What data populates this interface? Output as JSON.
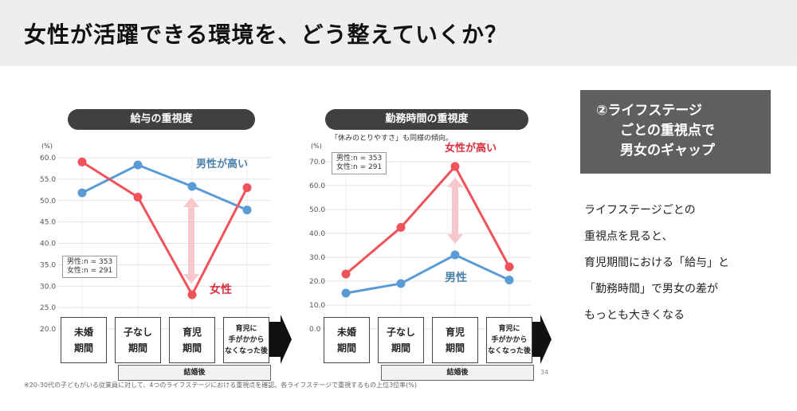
{
  "header": {
    "title": "女性が活躍できる環境を、どう整えていくか？"
  },
  "callout": {
    "lines": [
      "②ライフステージ",
      "ごとの重視点で",
      "男女のギャップ"
    ]
  },
  "description": {
    "lines": [
      "ライフステージごとの",
      "重視点を見ると、",
      "育児期間における「給与」と",
      "「勤務時間」で男女の差が",
      "もっとも大きくなる"
    ]
  },
  "slide": {
    "footnote": "※20-30代の子どもがいる従業員に対して、4つのライフステージにおける重視点を確認。各ライフステージで重視するもの上位3位率(%)",
    "page_number": "34",
    "after_marriage": "結婚後",
    "stages": [
      "未婚\n期間",
      "子なし\n期間",
      "育児\n期間",
      "育児に\n手がかから\nなくなった後"
    ],
    "legend_note": [
      "男性:n = 353",
      "女性:n = 291"
    ]
  },
  "colors": {
    "male": "#5b9bd5",
    "female": "#f0525a",
    "male_text": "#4a7fa8",
    "female_text": "#d93040",
    "arrow": "#f6c8cc"
  },
  "chart_data": [
    {
      "type": "line",
      "title": "給与の重視度",
      "unit": "(%)",
      "categories": [
        "未婚期間",
        "子なし期間",
        "育児期間",
        "育児に手がかからなくなった後"
      ],
      "ylim": [
        20,
        60
      ],
      "yticks": [
        "60.0",
        "55.0",
        "50.0",
        "45.0",
        "40.0",
        "35.0",
        "30.0",
        "25.0",
        "20.0"
      ],
      "series": [
        {
          "name": "男性",
          "values": [
            51.8,
            58.3,
            53.3,
            47.8
          ]
        },
        {
          "name": "女性",
          "values": [
            59.0,
            50.8,
            28.0,
            53.0
          ]
        }
      ],
      "annotations": {
        "high": "男性が高い",
        "low": "女性"
      }
    },
    {
      "type": "line",
      "title": "勤務時間の重視度",
      "subtitle": "「休みのとりやすさ」も同様の傾向。",
      "unit": "(%)",
      "categories": [
        "未婚期間",
        "子なし期間",
        "育児期間",
        "育児に手がかからなくなった後"
      ],
      "ylim": [
        0,
        70
      ],
      "yticks": [
        "70.0",
        "60.0",
        "50.0",
        "40.0",
        "30.0",
        "20.0",
        "10.0",
        "0.0"
      ],
      "series": [
        {
          "name": "男性",
          "values": [
            15.0,
            19.0,
            31.0,
            20.5
          ]
        },
        {
          "name": "女性",
          "values": [
            23.0,
            42.5,
            68.0,
            26.0
          ]
        }
      ],
      "annotations": {
        "high": "女性が高い",
        "low": "男性"
      }
    }
  ]
}
